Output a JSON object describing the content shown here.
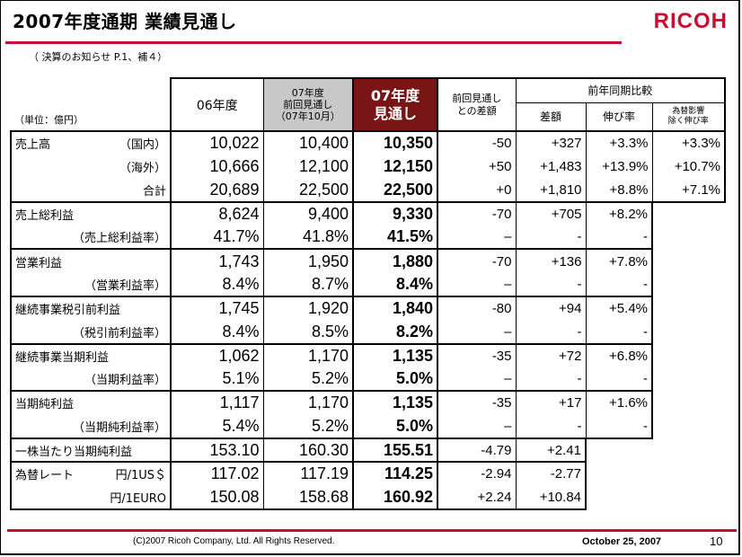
{
  "title": "2007年度通期 業績見通し",
  "brand": "RICOH",
  "subtitle": "（ 決算のお知らせ P.1、補４）",
  "unit_label": "（単位：億円）",
  "headers": {
    "fy06": "06年度",
    "prev_line1": "07年度",
    "prev_line2": "前回見通し",
    "prev_line3": "（07年10月）",
    "fy07_line1": "07年度",
    "fy07_line2": "見通し",
    "diff_line1": "前回見通し",
    "diff_line2": "との差額",
    "yoy": "前年同期比較",
    "yoy_amount": "差額",
    "yoy_growth": "伸び率",
    "yoy_fx_line1": "為替影響",
    "yoy_fx_line2": "除く伸び率"
  },
  "rows": [
    {
      "label": "売上高",
      "sub": "（国内）",
      "fy06": "10,022",
      "prev": "10,400",
      "fy07": "10,350",
      "diff": "-50",
      "yoy_amount": "+327",
      "yoy_growth": "+3.3%",
      "yoy_fx": "+3.3%"
    },
    {
      "label": "",
      "sub": "（海外）",
      "fy06": "10,666",
      "prev": "12,100",
      "fy07": "12,150",
      "diff": "+50",
      "yoy_amount": "+1,483",
      "yoy_growth": "+13.9%",
      "yoy_fx": "+10.7%"
    },
    {
      "label": "",
      "sub": "合計",
      "fy06": "20,689",
      "prev": "22,500",
      "fy07": "22,500",
      "diff": "+0",
      "yoy_amount": "+1,810",
      "yoy_growth": "+8.8%",
      "yoy_fx": "+7.1%"
    },
    {
      "label": "売上総利益",
      "sub": "",
      "fy06": "8,624",
      "prev": "9,400",
      "fy07": "9,330",
      "diff": "-70",
      "yoy_amount": "+705",
      "yoy_growth": "+8.2%"
    },
    {
      "label": "",
      "sub": "（売上総利益率）",
      "fy06": "41.7%",
      "prev": "41.8%",
      "fy07": "41.5%",
      "diff": "–",
      "yoy_amount": "-",
      "yoy_growth": "-"
    },
    {
      "label": "営業利益",
      "sub": "",
      "fy06": "1,743",
      "prev": "1,950",
      "fy07": "1,880",
      "diff": "-70",
      "yoy_amount": "+136",
      "yoy_growth": "+7.8%"
    },
    {
      "label": "",
      "sub": "（営業利益率）",
      "fy06": "8.4%",
      "prev": "8.7%",
      "fy07": "8.4%",
      "diff": "–",
      "yoy_amount": "-",
      "yoy_growth": "-"
    },
    {
      "label": "継続事業税引前利益",
      "sub": "",
      "fy06": "1,745",
      "prev": "1,920",
      "fy07": "1,840",
      "diff": "-80",
      "yoy_amount": "+94",
      "yoy_growth": "+5.4%"
    },
    {
      "label": "",
      "sub": "（税引前利益率）",
      "fy06": "8.4%",
      "prev": "8.5%",
      "fy07": "8.2%",
      "diff": "–",
      "yoy_amount": "-",
      "yoy_growth": "-"
    },
    {
      "label": "継続事業当期利益",
      "sub": "",
      "fy06": "1,062",
      "prev": "1,170",
      "fy07": "1,135",
      "diff": "-35",
      "yoy_amount": "+72",
      "yoy_growth": "+6.8%"
    },
    {
      "label": "",
      "sub": "（当期利益率）",
      "fy06": "5.1%",
      "prev": "5.2%",
      "fy07": "5.0%",
      "diff": "–",
      "yoy_amount": "-",
      "yoy_growth": "-"
    },
    {
      "label": "当期純利益",
      "sub": "",
      "fy06": "1,117",
      "prev": "1,170",
      "fy07": "1,135",
      "diff": "-35",
      "yoy_amount": "+17",
      "yoy_growth": "+1.6%"
    },
    {
      "label": "",
      "sub": "（当期純利益率）",
      "fy06": "5.4%",
      "prev": "5.2%",
      "fy07": "5.0%",
      "diff": "–",
      "yoy_amount": "-",
      "yoy_growth": "-"
    },
    {
      "label": "一株当たり当期純利益",
      "sub": "",
      "fy06": "153.10",
      "prev": "160.30",
      "fy07": "155.51",
      "diff": "-4.79",
      "yoy_amount": "+2.41"
    },
    {
      "label": "為替レート",
      "sub": "円/1US＄",
      "fy06": "117.02",
      "prev": "117.19",
      "fy07": "114.25",
      "diff": "-2.94",
      "yoy_amount": "-2.77"
    },
    {
      "label": "",
      "sub": "円/1EURO",
      "fy06": "150.08",
      "prev": "158.68",
      "fy07": "160.92",
      "diff": "+2.24",
      "yoy_amount": "+10.84"
    }
  ],
  "footer": {
    "copyright": "(C)2007 Ricoh Company, Ltd. All Rights Reserved.",
    "date": "October 25, 2007",
    "page": "10"
  },
  "colors": {
    "brand_red": "#c8102e",
    "highlight_col": "#7a1515",
    "prev_col_bg": "#c8c8c8"
  }
}
